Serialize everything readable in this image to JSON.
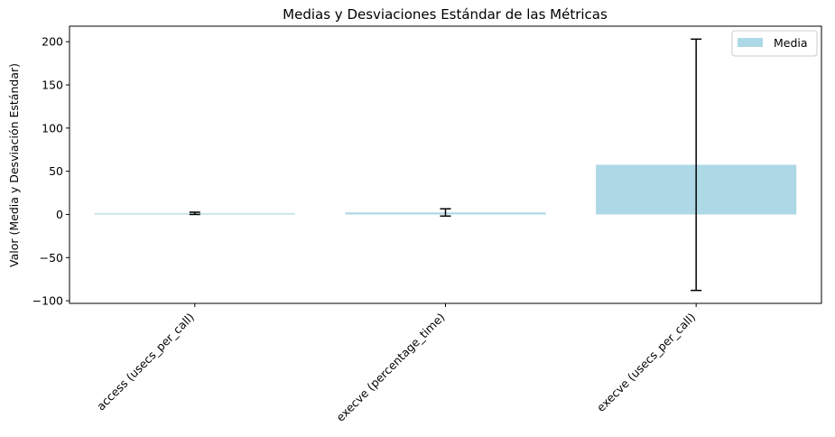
{
  "chart_data": {
    "type": "bar",
    "title": "Medias y Desviaciones Estándar de las Métricas",
    "xlabel": "",
    "ylabel": "Valor (Media y Desviación Estándar)",
    "categories": [
      "access (usecs_per_call)",
      "execve (percentage_time)",
      "execve (usecs_per_call)"
    ],
    "series": [
      {
        "name": "Media",
        "values": [
          1.3,
          2.3,
          57.5
        ],
        "error": [
          1.3,
          4.2,
          145.5
        ],
        "color": "#add8e6"
      }
    ],
    "ylim": [
      -103,
      218
    ],
    "yticks": [
      -100,
      -50,
      0,
      50,
      100,
      150,
      200
    ],
    "ytick_labels": [
      "−100",
      "−50",
      "0",
      "50",
      "100",
      "150",
      "200"
    ],
    "grid": false,
    "legend": {
      "position": "top-right",
      "label": "Media"
    },
    "error_bar_color": "#000000"
  }
}
